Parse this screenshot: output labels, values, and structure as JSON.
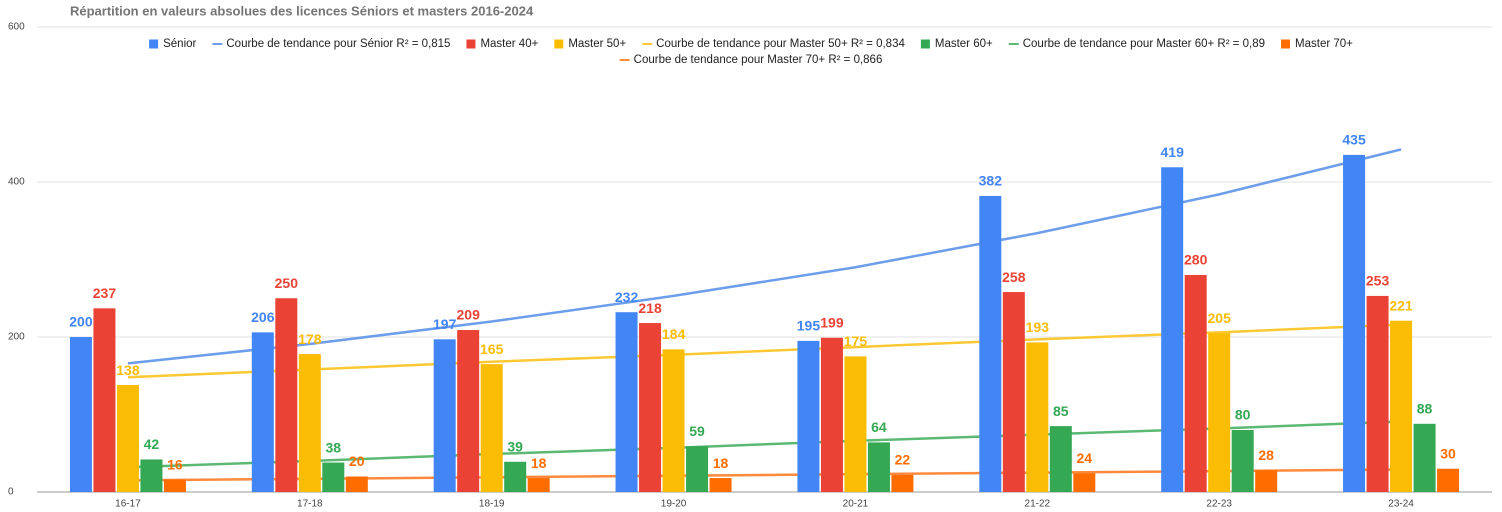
{
  "chart_data": {
    "type": "bar",
    "title": "Répartition en valeurs absolues des licences Séniors et masters 2016-2024",
    "categories": [
      "16-17",
      "17-18",
      "18-19",
      "19-20",
      "20-21",
      "21-22",
      "22-23",
      "23-24"
    ],
    "ylim": [
      0,
      600
    ],
    "yticks": [
      0,
      200,
      400,
      600
    ],
    "grid": true,
    "series": [
      {
        "name": "Sénior",
        "type": "bar",
        "color": "#4285f4",
        "values": [
          200,
          206,
          197,
          232,
          195,
          382,
          419,
          435
        ]
      },
      {
        "name": "Courbe de tendance pour Sénior R² = 0,815",
        "type": "line",
        "color": "#6d9eeb",
        "values": [
          166,
          191,
          220,
          253,
          290,
          334,
          384,
          442
        ]
      },
      {
        "name": "Master 40+",
        "type": "bar",
        "color": "#ea4335",
        "values": [
          237,
          250,
          209,
          218,
          199,
          258,
          280,
          253
        ]
      },
      {
        "name": "Master 50+",
        "type": "bar",
        "color": "#fbbc04",
        "values": [
          138,
          178,
          165,
          184,
          175,
          193,
          205,
          221
        ]
      },
      {
        "name": "Courbe de tendance pour Master 50+ R² = 0,834",
        "type": "line",
        "color": "#fcc934",
        "values": [
          148,
          158,
          168,
          177,
          187,
          197,
          206,
          216
        ]
      },
      {
        "name": "Master 60+",
        "type": "bar",
        "color": "#34a853",
        "values": [
          42,
          38,
          39,
          59,
          64,
          85,
          80,
          88
        ]
      },
      {
        "name": "Courbe de tendance pour Master 60+ R² = 0,89",
        "type": "line",
        "color": "#5bb974",
        "values": [
          32,
          40,
          49,
          57,
          66,
          74,
          82,
          91
        ]
      },
      {
        "name": "Master 70+",
        "type": "bar",
        "color": "#ff6d01",
        "values": [
          16,
          20,
          18,
          18,
          22,
          24,
          28,
          30
        ]
      },
      {
        "name": "Courbe de tendance pour Master 70+ R² = 0,866",
        "type": "line",
        "color": "#ff8a3d",
        "values": [
          15,
          17,
          19,
          21,
          23,
          25,
          27,
          29
        ]
      }
    ]
  }
}
